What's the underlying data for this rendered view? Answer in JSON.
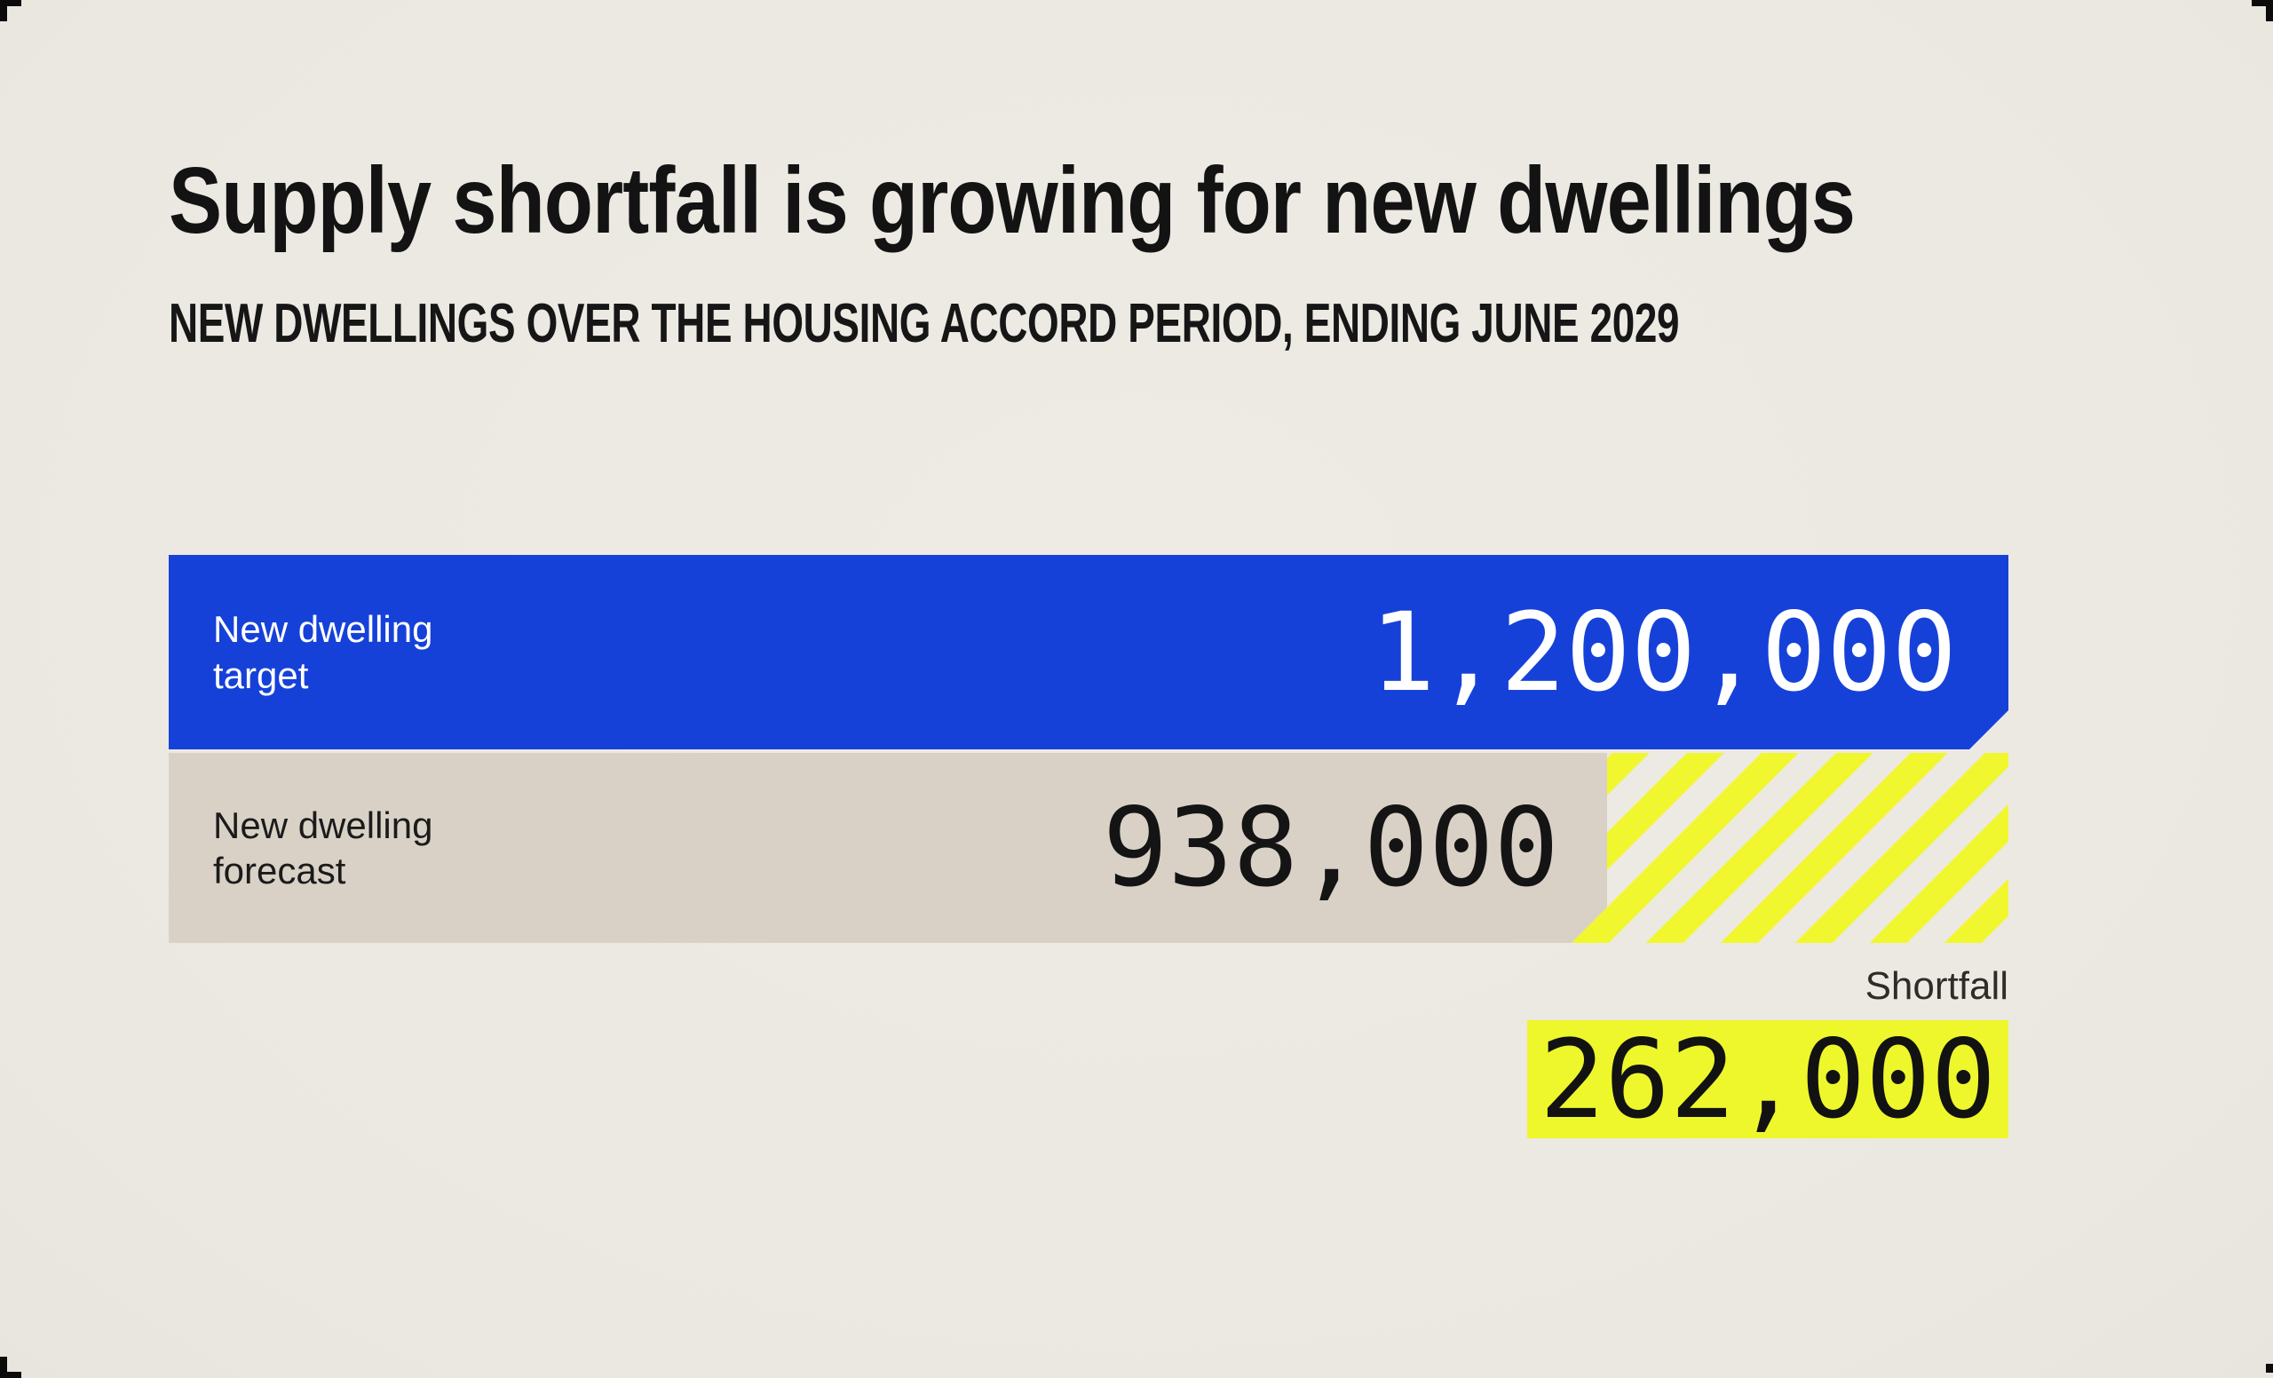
{
  "title": "Supply shortfall is growing for new dwellings",
  "subtitle": "NEW DWELLINGS OVER THE HOUSING ACCORD PERIOD, ENDING JUNE 2029",
  "bars": [
    {
      "label_line1": "New dwelling",
      "label_line2": "target",
      "value": "1,200,000"
    },
    {
      "label_line1": "New dwelling",
      "label_line2": "forecast",
      "value": "938,000"
    }
  ],
  "shortfall": {
    "label": "Shortfall",
    "value": "262,000"
  },
  "colors": {
    "background": "#ECE9E2",
    "target_blue": "#1641D9",
    "forecast_beige": "#D9D1C6",
    "accent_yellow": "#EEF72B",
    "text_dark": "#131313",
    "text_on_blue": "#FFFFFF"
  },
  "chart_data": {
    "type": "bar",
    "orientation": "horizontal",
    "title": "Supply shortfall is growing for new dwellings",
    "subtitle": "New dwellings over the Housing Accord period, ending June 2029",
    "categories": [
      "New dwelling target",
      "New dwelling forecast"
    ],
    "values": [
      1200000,
      938000
    ],
    "value_labels": [
      "1,200,000",
      "938,000"
    ],
    "annotations": [
      {
        "name": "Shortfall",
        "value": 262000,
        "value_label": "262,000",
        "style": "yellow-diagonal-stripes"
      }
    ],
    "xlim": [
      0,
      1200000
    ],
    "grid": false,
    "legend": false
  }
}
